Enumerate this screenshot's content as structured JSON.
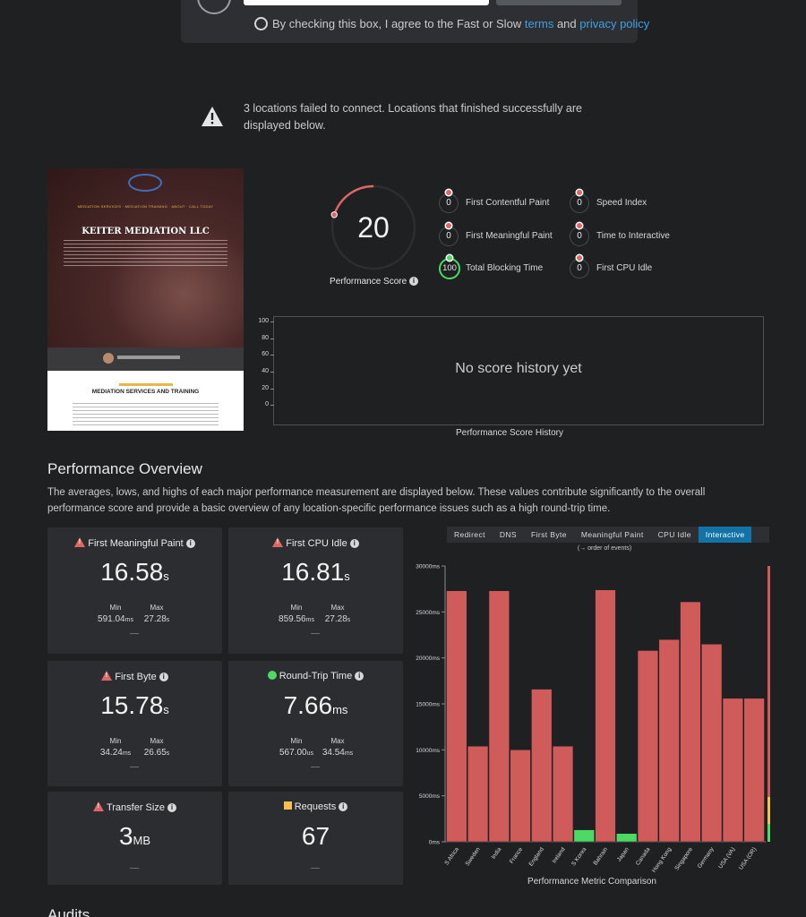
{
  "form": {
    "agree_prefix": "By checking this box, I agree to the Fast or Slow",
    "terms_link": "terms",
    "and": "and",
    "privacy_link": "privacy policy"
  },
  "warning": {
    "text": "3 locations failed to connect. Locations that finished successfully are displayed below."
  },
  "thumbnail": {
    "heading": "KEITER MEDIATION LLC",
    "section_title": "MEDIATION SERVICES AND TRAINING"
  },
  "score": {
    "value": "20",
    "fraction": 0.2,
    "label": "Performance Score",
    "color": "#e06666"
  },
  "metrics": [
    {
      "value": "0",
      "label": "First Contentful Paint",
      "status": "bad"
    },
    {
      "value": "0",
      "label": "First Meaningful Paint",
      "status": "bad"
    },
    {
      "value": "100",
      "label": "Total Blocking Time",
      "status": "good"
    },
    {
      "value": "0",
      "label": "Speed Index",
      "status": "bad"
    },
    {
      "value": "0",
      "label": "Time to Interactive",
      "status": "bad"
    },
    {
      "value": "0",
      "label": "First CPU Idle",
      "status": "bad"
    }
  ],
  "history": {
    "empty_text": "No score history yet",
    "title": "Performance Score History",
    "ticks": [
      "100",
      "80",
      "60",
      "40",
      "20",
      "0"
    ]
  },
  "overview": {
    "title": "Performance Overview",
    "description": "The averages, lows, and highs of each major performance measurement are displayed below. These values contribute significantly to the overall performance score and provide a basic overview of any location-specific performance issues such as a high round-trip time.",
    "cards": [
      {
        "title": "First Meaningful Paint",
        "icon": "warning-icon",
        "value": "16.58",
        "unit": "s",
        "min_label": "Min",
        "min": "591.04",
        "min_unit": "ms",
        "max_label": "Max",
        "max": "27.28",
        "max_unit": "s"
      },
      {
        "title": "First CPU Idle",
        "icon": "warning-icon",
        "value": "16.81",
        "unit": "s",
        "min_label": "Min",
        "min": "859.56",
        "min_unit": "ms",
        "max_label": "Max",
        "max": "27.28",
        "max_unit": "s"
      },
      {
        "title": "First Byte",
        "icon": "warning-icon",
        "value": "15.78",
        "unit": "s",
        "min_label": "Min",
        "min": "34.24",
        "min_unit": "ms",
        "max_label": "Max",
        "max": "26.65",
        "max_unit": "s"
      },
      {
        "title": "Round-Trip Time",
        "icon": "ok-dot-icon",
        "value": "7.66",
        "unit": "ms",
        "min_label": "Min",
        "min": "567.00",
        "min_unit": "us",
        "max_label": "Max",
        "max": "34.54",
        "max_unit": "ms"
      },
      {
        "title": "Transfer Size",
        "icon": "warning-icon",
        "value": "3",
        "unit": "MB"
      },
      {
        "title": "Requests",
        "icon": "yellow-square-icon",
        "value": "67",
        "unit": ""
      }
    ]
  },
  "comparison": {
    "tabs": [
      "Redirect",
      "DNS",
      "First Byte",
      "Meaningful Paint",
      "CPU Idle",
      "Interactive"
    ],
    "active_tab": "Interactive",
    "order_note": "(→ order of events)",
    "title": "Performance Metric Comparison"
  },
  "chart_data": {
    "type": "bar",
    "title": "Performance Metric Comparison",
    "categories": [
      "S Africa",
      "Sweden",
      "India",
      "France",
      "England",
      "Ireland",
      "S Korea",
      "Bahrain",
      "Japan",
      "Canada",
      "Hong Kong",
      "Singapore",
      "Germany",
      "USA (VA)",
      "USA (OR)"
    ],
    "values": [
      27300,
      10400,
      27300,
      10000,
      16600,
      10400,
      1300,
      27400,
      900,
      20800,
      22000,
      26100,
      21500,
      15600,
      15600
    ],
    "bar_colors": [
      "#cf5b5b",
      "#cf5b5b",
      "#cf5b5b",
      "#cf5b5b",
      "#cf5b5b",
      "#cf5b5b",
      "#4cd964",
      "#cf5b5b",
      "#4cd964",
      "#cf5b5b",
      "#cf5b5b",
      "#cf5b5b",
      "#cf5b5b",
      "#cf5b5b",
      "#cf5b5b"
    ],
    "y_ticks": [
      "0ms",
      "5000ms",
      "10000ms",
      "15000ms",
      "20000ms",
      "25000ms",
      "30000ms"
    ],
    "ylim": [
      0,
      30000
    ],
    "grid": false
  },
  "audits": {
    "title": "Audits"
  }
}
